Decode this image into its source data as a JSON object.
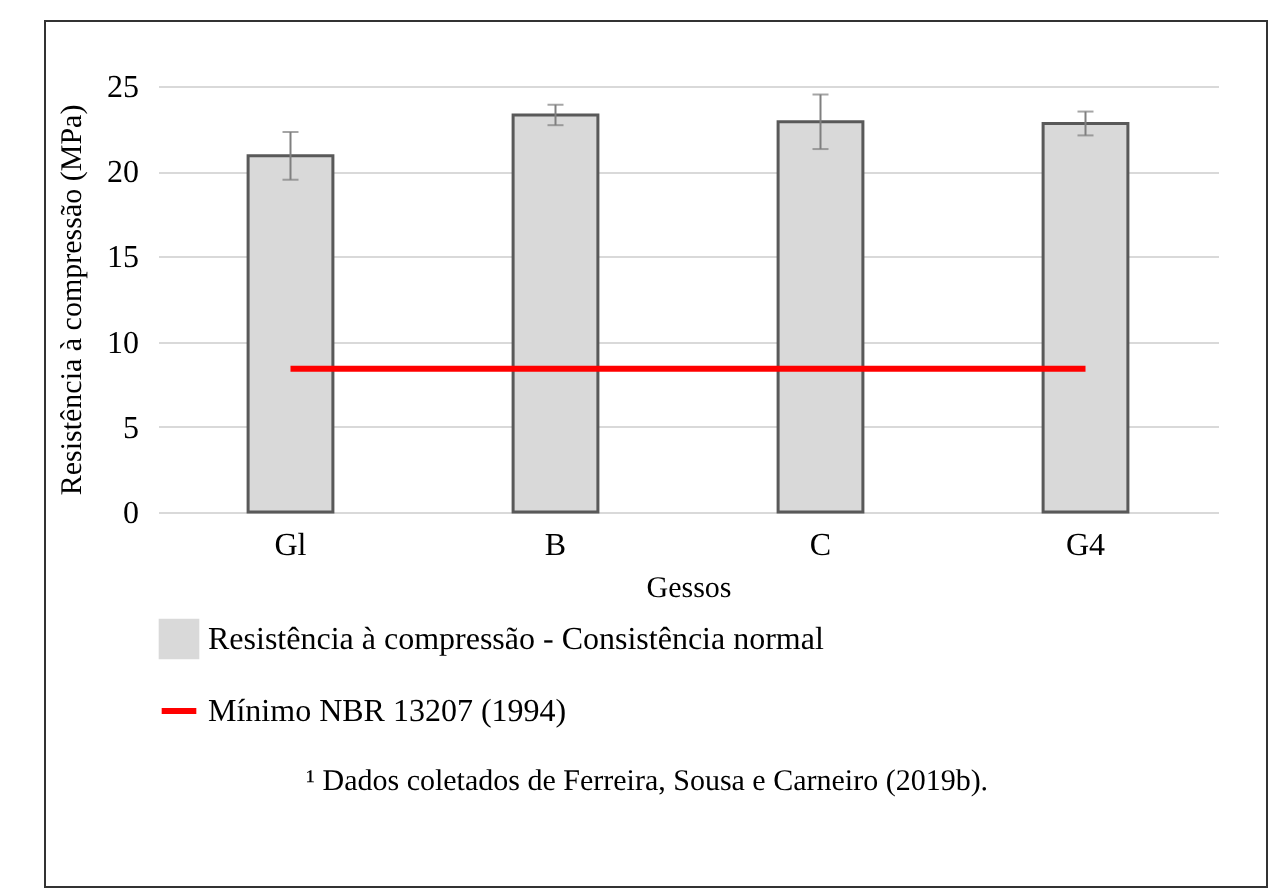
{
  "chart_data": {
    "type": "bar",
    "xlabel": "Gessos",
    "ylabel": "Resistência à compressão (MPa)",
    "categories": [
      "Gl",
      "B",
      "C",
      "G4"
    ],
    "series": [
      {
        "name": "Resistência à compressão - Consistência normal",
        "color": "#d9d9d9",
        "values": [
          20.9,
          23.3,
          22.9,
          22.8
        ],
        "errors": [
          1.4,
          0.6,
          1.6,
          0.7
        ]
      },
      {
        "name": "Mínimo NBR 13207 (1994)",
        "type": "line",
        "color": "#ff0000",
        "values": [
          8.4,
          8.4,
          8.4,
          8.4
        ]
      }
    ],
    "ylim": [
      0,
      25
    ],
    "yticks": [
      0,
      5,
      10,
      15,
      20,
      25
    ],
    "grid": "y",
    "legend": "bottom",
    "marker": "none",
    "line_style": "solid",
    "annotations": [
      "¹ Dados coletados de Ferreira, Sousa e Carneiro (2019b)."
    ]
  }
}
